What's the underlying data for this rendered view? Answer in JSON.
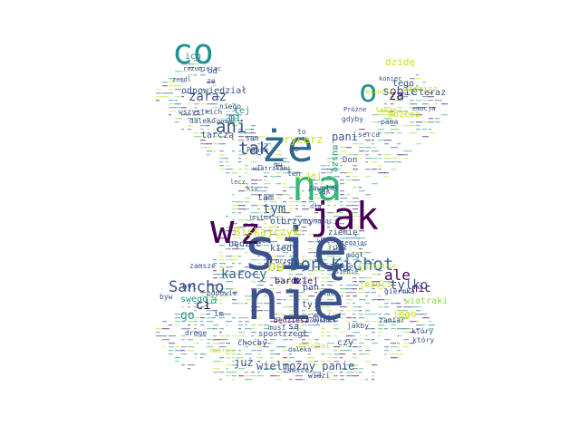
{
  "palette": {
    "dark_purple": "#440154",
    "indigo": "#3b528b",
    "blue": "#31688e",
    "teal": "#21918c",
    "green": "#35b779",
    "lime": "#90d743",
    "yellow": "#c8e020"
  },
  "shape": "windmill-sails",
  "words": [
    {
      "text": "się",
      "color": "#3b528b"
    },
    {
      "text": "nie",
      "color": "#3b528b"
    },
    {
      "text": "że",
      "color": "#31688e"
    },
    {
      "text": "na",
      "color": "#35b779"
    },
    {
      "text": "jak",
      "color": "#440154"
    },
    {
      "text": "w",
      "color": "#440154"
    },
    {
      "text": "z",
      "color": "#440154"
    },
    {
      "text": "co",
      "color": "#21918c"
    },
    {
      "text": "o",
      "color": "#21918c"
    },
    {
      "text": "Don Kichot",
      "color": "#31688e"
    },
    {
      "text": "Sancho",
      "color": "#3b528b"
    },
    {
      "text": "tak",
      "color": "#3b528b"
    },
    {
      "text": "ani",
      "color": "#3b528b"
    },
    {
      "text": "ale",
      "color": "#440154"
    },
    {
      "text": "tylko",
      "color": "#3b528b"
    },
    {
      "text": "bo",
      "color": "#c8e020"
    },
    {
      "text": "karocy",
      "color": "#31688e"
    },
    {
      "text": "sobie",
      "color": "#3b528b"
    },
    {
      "text": "zaraz",
      "color": "#3b528b"
    },
    {
      "text": "za",
      "color": "#440154"
    },
    {
      "text": "ich",
      "color": "#21918c"
    },
    {
      "text": "odpowiedział",
      "color": "#3b528b"
    },
    {
      "text": "rycerz",
      "color": "#c8e020"
    },
    {
      "text": "pani",
      "color": "#3b528b"
    },
    {
      "text": "tym",
      "color": "#3b528b"
    },
    {
      "text": "tam",
      "color": "#3b528b"
    },
    {
      "text": "olbrzymy",
      "color": "#3b528b"
    },
    {
      "text": "Biskajczyk",
      "color": "#c8e020"
    },
    {
      "text": "będzie",
      "color": "#3b528b"
    },
    {
      "text": "kiedy",
      "color": "#3b528b"
    },
    {
      "text": "ja",
      "color": "#35b779"
    },
    {
      "text": "ci",
      "color": "#440154"
    },
    {
      "text": "go",
      "color": "#21918c"
    },
    {
      "text": "mi",
      "color": "#21918c"
    },
    {
      "text": "tej",
      "color": "#21918c"
    },
    {
      "text": "bardziej",
      "color": "#440154"
    },
    {
      "text": "wielmożny panie",
      "color": "#3b528b"
    },
    {
      "text": "już",
      "color": "#3b528b"
    },
    {
      "text": "nic",
      "color": "#440154"
    },
    {
      "text": "jeżeli",
      "color": "#c8e020"
    },
    {
      "text": "mnie",
      "color": "#3b528b"
    },
    {
      "text": "ty",
      "color": "#3b528b"
    },
    {
      "text": "pan",
      "color": "#3b528b"
    },
    {
      "text": "dzidę",
      "color": "#c8e020"
    },
    {
      "text": "tego",
      "color": "#3b528b"
    },
    {
      "text": "możesz",
      "color": "#c8e020"
    },
    {
      "text": "tarczą",
      "color": "#3b528b"
    },
    {
      "text": "wszystkich",
      "color": "#3b528b"
    },
    {
      "text": "niego",
      "color": "#3b528b"
    },
    {
      "text": "Pansa",
      "color": "#3b528b"
    },
    {
      "text": "wiatrakami",
      "color": "#3b528b"
    },
    {
      "text": "ziemię",
      "color": "#3b528b"
    },
    {
      "text": "więc",
      "color": "#3b528b"
    },
    {
      "text": "swego",
      "color": "#21918c"
    },
    {
      "text": "zamsze",
      "color": "#3b528b"
    },
    {
      "text": "odpowie",
      "color": "#3b528b"
    },
    {
      "text": "był",
      "color": "#3b528b"
    },
    {
      "text": "Toboso",
      "color": "#3b528b"
    },
    {
      "text": "przygodzie",
      "color": "#c8e020"
    },
    {
      "text": "mógł",
      "color": "#3b528b"
    },
    {
      "text": "giermka",
      "color": "#3b528b"
    },
    {
      "text": "wiatraki",
      "color": "#90d743"
    },
    {
      "text": "jego",
      "color": "#c8e020"
    },
    {
      "text": "który",
      "color": "#3b528b"
    },
    {
      "text": "czy",
      "color": "#3b528b"
    },
    {
      "text": "są",
      "color": "#3b528b"
    },
    {
      "text": "będziesz",
      "color": "#440154"
    },
    {
      "text": "spostrzegł",
      "color": "#3b528b"
    },
    {
      "text": "choćby",
      "color": "#3b528b"
    },
    {
      "text": "daleka",
      "color": "#3b528b"
    },
    {
      "text": "drogę",
      "color": "#3b528b"
    },
    {
      "text": "Dulcynei",
      "color": "#c8e020"
    },
    {
      "text": "Rosynante",
      "color": "#3b528b"
    },
    {
      "text": "widzi",
      "color": "#3b528b"
    },
    {
      "text": "teraz",
      "color": "#3b528b"
    },
    {
      "text": "widzisz",
      "color": "#c8e020"
    },
    {
      "text": "koniec",
      "color": "#3b528b"
    },
    {
      "text": "Kichota",
      "color": "#c8e020"
    },
    {
      "text": "pama",
      "color": "#3b528b"
    },
    {
      "text": "serca",
      "color": "#3b528b"
    },
    {
      "text": "Próżne",
      "color": "#3b528b"
    },
    {
      "text": "gdyby",
      "color": "#3b528b"
    },
    {
      "text": "sam",
      "color": "#3b528b"
    },
    {
      "text": "daleko",
      "color": "#3b528b"
    },
    {
      "text": "pomóc",
      "color": "#3b528b"
    },
    {
      "text": "rozumiejąc",
      "color": "#3b528b"
    },
    {
      "text": "od",
      "color": "#3b528b"
    },
    {
      "text": "ze",
      "color": "#3b528b"
    },
    {
      "text": "jej",
      "color": "#c8e020"
    },
    {
      "text": "po",
      "color": "#3b528b"
    },
    {
      "text": "muszę",
      "color": "#21918c"
    },
    {
      "text": "Don",
      "color": "#3b528b"
    },
    {
      "text": "zawołał",
      "color": "#3b528b"
    },
    {
      "text": "zawsze",
      "color": "#3b528b"
    },
    {
      "text": "to",
      "color": "#3b528b"
    },
    {
      "text": "mu",
      "color": "#3b528b"
    },
    {
      "text": "ten",
      "color": "#3b528b"
    },
    {
      "text": "byw",
      "color": "#3b528b"
    },
    {
      "text": "siebie",
      "color": "#3b528b"
    },
    {
      "text": "jestem",
      "color": "#3b528b"
    },
    {
      "text": "mając",
      "color": "#3b528b"
    },
    {
      "text": "była",
      "color": "#3b528b"
    },
    {
      "text": "także",
      "color": "#c8e020"
    },
    {
      "text": "który",
      "color": "#3b528b"
    },
    {
      "text": "kto",
      "color": "#3b528b"
    },
    {
      "text": "lecz",
      "color": "#3b528b"
    },
    {
      "text": "dla",
      "color": "#3b528b"
    },
    {
      "text": "przez",
      "color": "#3b528b"
    },
    {
      "text": "jakby",
      "color": "#3b528b"
    },
    {
      "text": "zamiar",
      "color": "#3b528b"
    },
    {
      "text": "klał",
      "color": "#3b528b"
    },
    {
      "text": "im",
      "color": "#3b528b"
    },
    {
      "text": "siegając",
      "color": "#3b528b"
    },
    {
      "text": "dobrze",
      "color": "#c8e020"
    },
    {
      "text": "musi",
      "color": "#3b528b"
    },
    {
      "text": "tak",
      "color": "#3b528b"
    },
    {
      "text": "fikał",
      "color": "#3b528b"
    },
    {
      "text": "zemdl",
      "color": "#3b528b"
    },
    {
      "text": "emocja",
      "color": "#3b528b"
    },
    {
      "text": "tu",
      "color": "#3b528b"
    }
  ]
}
